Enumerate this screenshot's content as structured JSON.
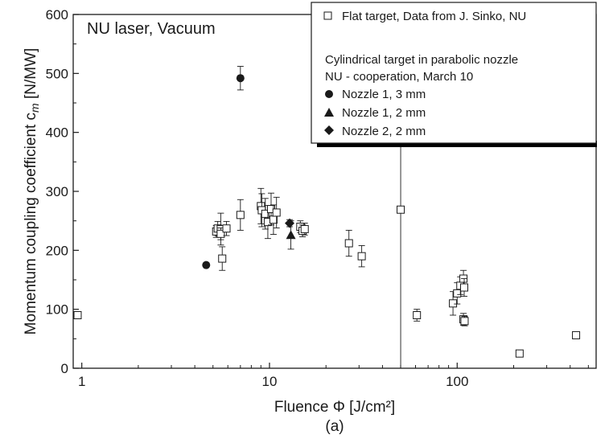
{
  "chart_data": {
    "type": "scatter",
    "annotation": "NU laser, Vacuum",
    "xlabel": "Fluence Φ [J/cm²]",
    "ylabel_main": "Momentum coupling coefficient c",
    "ylabel_sub": "m",
    "ylabel_unit": " [N/MW]",
    "panel_label": "(a)",
    "x_scale": "log",
    "xlim": [
      0.9,
      550
    ],
    "ylim": [
      0,
      600
    ],
    "x_ticks": [
      {
        "value": 1,
        "label": "1"
      },
      {
        "value": 10,
        "label": "10"
      },
      {
        "value": 100,
        "label": "100"
      }
    ],
    "y_ticks": [
      {
        "value": 0,
        "label": "0"
      },
      {
        "value": 100,
        "label": "100"
      },
      {
        "value": 200,
        "label": "200"
      },
      {
        "value": 300,
        "label": "300"
      },
      {
        "value": 400,
        "label": "400"
      },
      {
        "value": 500,
        "label": "500"
      },
      {
        "value": 600,
        "label": "600"
      }
    ],
    "legend": {
      "position": "top-right",
      "flat_label": "Flat target, Data from J. Sinko, NU",
      "group_title_1": "Cylindrical target in parabolic nozzle",
      "group_title_2": "NU - cooperation, March 10",
      "nozzle13_label": "Nozzle 1, 3 mm",
      "nozzle12_label": "Nozzle 1, 2 mm",
      "nozzle22_label": "Nozzle 2, 2 mm"
    },
    "series": [
      {
        "key": "flat",
        "marker": "open-square",
        "points": [
          {
            "x": 0.95,
            "y": 90,
            "err": 4
          },
          {
            "x": 5.2,
            "y": 232,
            "err": 10
          },
          {
            "x": 5.3,
            "y": 237,
            "err": 12
          },
          {
            "x": 5.5,
            "y": 236,
            "err": 27
          },
          {
            "x": 5.5,
            "y": 228,
            "err": 10
          },
          {
            "x": 5.6,
            "y": 186,
            "err": 20
          },
          {
            "x": 5.9,
            "y": 237,
            "err": 12
          },
          {
            "x": 7.0,
            "y": 260,
            "err": 26
          },
          {
            "x": 9.0,
            "y": 275,
            "err": 30
          },
          {
            "x": 9.1,
            "y": 268,
            "err": 28
          },
          {
            "x": 9.5,
            "y": 262,
            "err": 26
          },
          {
            "x": 9.8,
            "y": 248,
            "err": 28
          },
          {
            "x": 10.2,
            "y": 270,
            "err": 27
          },
          {
            "x": 10.5,
            "y": 252,
            "err": 25
          },
          {
            "x": 10.9,
            "y": 264,
            "err": 26
          },
          {
            "x": 14.6,
            "y": 240,
            "err": 10
          },
          {
            "x": 15.0,
            "y": 233,
            "err": 10
          },
          {
            "x": 15.4,
            "y": 236,
            "err": 10
          },
          {
            "x": 26.5,
            "y": 212,
            "err": 22
          },
          {
            "x": 31.0,
            "y": 190,
            "err": 18
          },
          {
            "x": 50.0,
            "y": 269,
            "err": 269
          },
          {
            "x": 61.0,
            "y": 90,
            "err": 10
          },
          {
            "x": 95.0,
            "y": 110,
            "err": 20
          },
          {
            "x": 100.0,
            "y": 127,
            "err": 18
          },
          {
            "x": 104.0,
            "y": 140,
            "err": 15
          },
          {
            "x": 108.0,
            "y": 152,
            "err": 14
          },
          {
            "x": 109.0,
            "y": 137,
            "err": 15
          },
          {
            "x": 108.0,
            "y": 83,
            "err": 10
          },
          {
            "x": 109.5,
            "y": 80,
            "err": 8
          },
          {
            "x": 215.0,
            "y": 25,
            "err": 4
          },
          {
            "x": 430.0,
            "y": 56,
            "err": 4
          }
        ]
      },
      {
        "key": "nozzle13",
        "marker": "filled-circle",
        "points": [
          {
            "x": 4.6,
            "y": 175,
            "err": 0
          },
          {
            "x": 7.0,
            "y": 492,
            "err": 20
          }
        ]
      },
      {
        "key": "nozzle12",
        "marker": "filled-triangle",
        "points": [
          {
            "x": 13.0,
            "y": 226,
            "err": 24
          }
        ]
      },
      {
        "key": "nozzle22",
        "marker": "filled-diamond",
        "points": [
          {
            "x": 12.8,
            "y": 246,
            "err": 6
          }
        ]
      }
    ],
    "grid": false
  }
}
